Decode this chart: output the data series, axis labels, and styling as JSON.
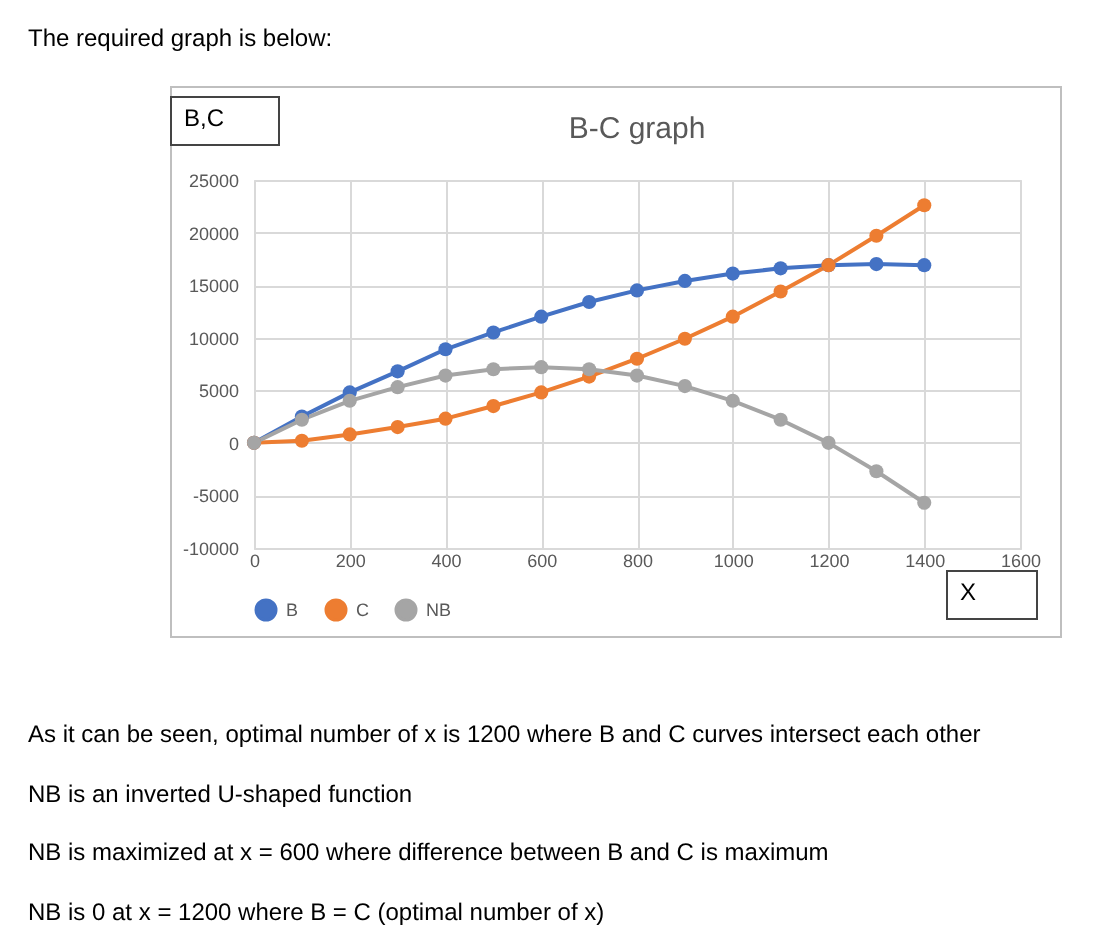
{
  "chart_data": {
    "type": "line",
    "title": "B-C graph",
    "xlabel": "X",
    "ylabel": "B,C",
    "annotations": [
      "The required graph is below:",
      "As it can be seen, optimal number of x is 1200 where B and C curves intersect each other",
      "NB is an inverted U-shaped function",
      "NB is maximized at x = 600 where difference between B and C is maximum",
      "NB is 0 at x = 1200 where B = C (optimal number of x)"
    ],
    "x": [
      0,
      100,
      200,
      300,
      400,
      500,
      600,
      700,
      800,
      900,
      1000,
      1100,
      1200,
      1300,
      1400
    ],
    "series": [
      {
        "name": "B",
        "color": "#4472c4",
        "values": [
          0,
          2500,
          4800,
          6800,
          8900,
          10500,
          12000,
          13400,
          14500,
          15400,
          16100,
          16600,
          16900,
          17000,
          16900
        ]
      },
      {
        "name": "C",
        "color": "#ed7d31",
        "values": [
          0,
          200,
          800,
          1500,
          2300,
          3500,
          4800,
          6300,
          8000,
          9900,
          12000,
          14400,
          16900,
          19700,
          22600
        ]
      },
      {
        "name": "NB",
        "color": "#a5a5a5",
        "values": [
          0,
          2200,
          4000,
          5300,
          6400,
          7000,
          7200,
          7000,
          6400,
          5400,
          4000,
          2200,
          0,
          -2700,
          -5700
        ]
      }
    ],
    "xlim": [
      0,
      1600
    ],
    "xticks": [
      0,
      200,
      400,
      600,
      800,
      1000,
      1200,
      1400,
      1600
    ],
    "ylim": [
      -10000,
      25000
    ],
    "yticks": [
      -10000,
      -5000,
      0,
      5000,
      10000,
      15000,
      20000,
      25000
    ],
    "grid": true,
    "legend": "bottom",
    "marker": "circle",
    "line_style": "solid"
  }
}
